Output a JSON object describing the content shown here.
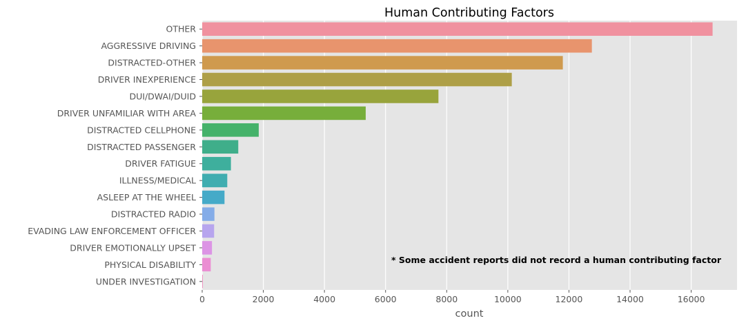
{
  "chart_data": {
    "type": "bar",
    "orientation": "horizontal",
    "title": "Human Contributing Factors",
    "xlabel": "count",
    "ylabel": "",
    "xlim": [
      0,
      17500
    ],
    "x_ticks": [
      0,
      2000,
      4000,
      6000,
      8000,
      10000,
      12000,
      14000,
      16000
    ],
    "grid": true,
    "categories": [
      "OTHER",
      "AGGRESSIVE DRIVING",
      "DISTRACTED-OTHER",
      "DRIVER INEXPERIENCE",
      "DUI/DWAI/DUID",
      "DRIVER UNFAMILIAR WITH AREA",
      "DISTRACTED CELLPHONE",
      "DISTRACTED PASSENGER",
      "DRIVER FATIGUE",
      "ILLNESS/MEDICAL",
      "ASLEEP AT THE WHEEL",
      "DISTRACTED RADIO",
      "EVADING LAW ENFORCEMENT OFFICER",
      "DRIVER EMOTIONALLY UPSET",
      "PHYSICAL DISABILITY",
      "UNDER INVESTIGATION"
    ],
    "values": [
      16700,
      12750,
      11800,
      10130,
      7730,
      5350,
      1850,
      1180,
      940,
      820,
      730,
      400,
      390,
      320,
      280,
      20
    ],
    "colors": [
      "#f0919f",
      "#e8946d",
      "#cf9a4e",
      "#ae9f47",
      "#98a43c",
      "#77ae3b",
      "#45b26a",
      "#3fae8a",
      "#3eaf9d",
      "#40adb0",
      "#45aac8",
      "#84ace8",
      "#b7a5ee",
      "#dc94e5",
      "#eb8ed3",
      "#ef8cbd"
    ],
    "annotation": "* Some accident reports did not record a human contributing factor"
  }
}
